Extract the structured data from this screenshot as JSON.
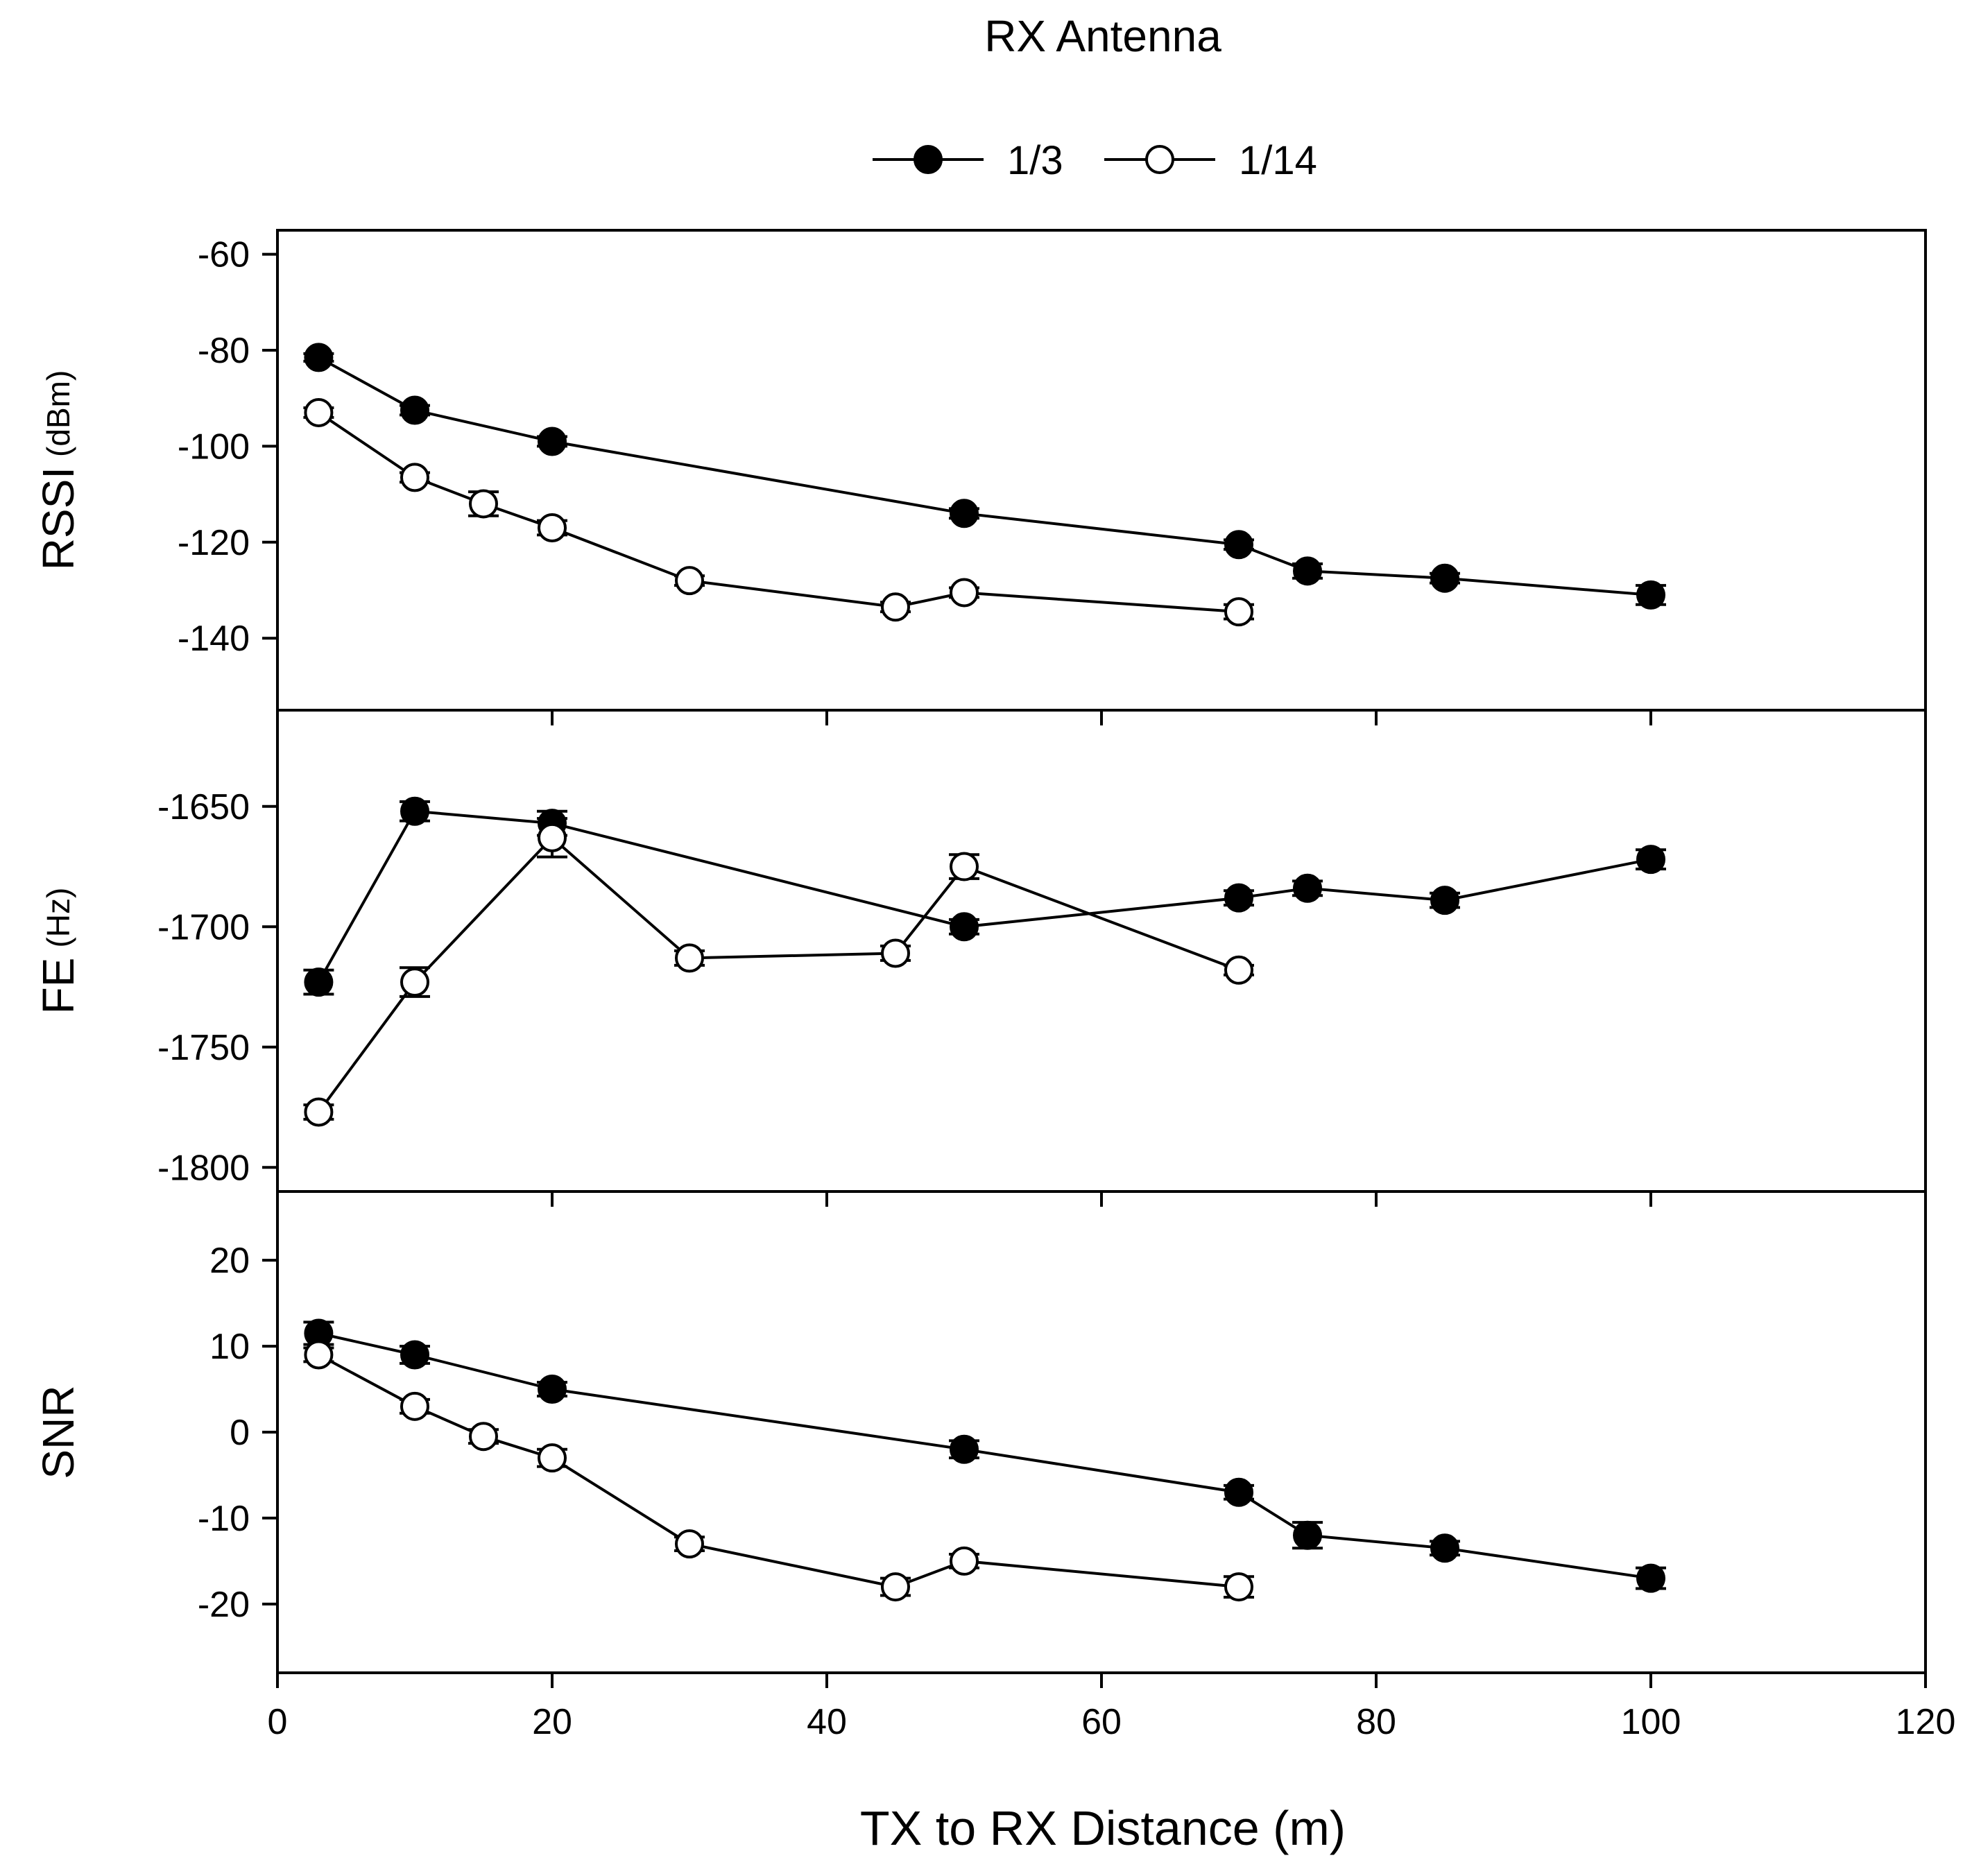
{
  "chart_data": {
    "type": "line",
    "title": "RX Antenna",
    "legend": {
      "placement": "top-center",
      "entries": [
        {
          "name": "1/3",
          "marker": "filled-circle",
          "color": "#000000"
        },
        {
          "name": "1/14",
          "marker": "open-circle",
          "color": "#000000"
        }
      ]
    },
    "xlabel": "TX to RX Distance (m)",
    "xlim": [
      0,
      120
    ],
    "xticks": [
      0,
      20,
      40,
      60,
      80,
      100,
      120
    ],
    "xtick_labels": [
      "0",
      "20",
      "40",
      "60",
      "80",
      "100",
      "120"
    ],
    "panels": [
      {
        "id": "rssi",
        "ylabel": "RSSI",
        "yunit": "(dBm)",
        "ylim": [
          -155,
          -55
        ],
        "yticks": [
          -60,
          -80,
          -100,
          -120,
          -140
        ],
        "ytick_labels": [
          "-60",
          "-80",
          "-100",
          "-120",
          "-140"
        ],
        "series": [
          {
            "name": "1/3",
            "x": [
              3,
              10,
              20,
              50,
              70,
              75,
              85,
              100
            ],
            "y": [
              -81.5,
              -92.5,
              -99,
              -114,
              -120.5,
              -126,
              -127.5,
              -131
            ],
            "err": [
              0.8,
              1,
              1,
              1,
              1,
              1.5,
              1,
              2
            ]
          },
          {
            "name": "1/14",
            "x": [
              3,
              10,
              15,
              20,
              30,
              45,
              50,
              70
            ],
            "y": [
              -93,
              -106.5,
              -112,
              -117,
              -128,
              -133.5,
              -130.5,
              -134.5
            ],
            "err": [
              1,
              1,
              2.5,
              1.5,
              1,
              1,
              1,
              1.5
            ]
          }
        ]
      },
      {
        "id": "fe",
        "ylabel": "FE",
        "yunit": "(Hz)",
        "ylim": [
          -1810,
          -1610
        ],
        "yticks": [
          -1650,
          -1700,
          -1750,
          -1800
        ],
        "ytick_labels": [
          "-1650",
          "-1700",
          "-1750",
          "-1800"
        ],
        "series": [
          {
            "name": "1/3",
            "x": [
              3,
              10,
              20,
              50,
              70,
              75,
              85,
              100
            ],
            "y": [
              -1723,
              -1652,
              -1657,
              -1700,
              -1688,
              -1684,
              -1689,
              -1672
            ],
            "err": [
              5,
              4,
              5,
              3,
              3,
              3,
              3,
              4
            ]
          },
          {
            "name": "1/14",
            "x": [
              3,
              10,
              20,
              30,
              45,
              50,
              70
            ],
            "y": [
              -1777,
              -1723,
              -1663,
              -1713,
              -1711,
              -1675,
              -1718
            ],
            "err": [
              3,
              6,
              8,
              3,
              3,
              5,
              2
            ]
          }
        ]
      },
      {
        "id": "snr",
        "ylabel": "SNR",
        "yunit": "",
        "ylim": [
          -28,
          28
        ],
        "yticks": [
          20,
          10,
          0,
          -10,
          -20
        ],
        "ytick_labels": [
          "20",
          "10",
          "0",
          "-10",
          "-20"
        ],
        "series": [
          {
            "name": "1/3",
            "x": [
              3,
              10,
              20,
              50,
              70,
              75,
              85,
              100
            ],
            "y": [
              11.5,
              9,
              5,
              -2,
              -7,
              -12,
              -13.5,
              -17
            ],
            "err": [
              1.3,
              1,
              0.8,
              1,
              0.8,
              1.5,
              0.8,
              1.2
            ]
          },
          {
            "name": "1/14",
            "x": [
              3,
              10,
              15,
              20,
              30,
              45,
              50,
              70
            ],
            "y": [
              9,
              3,
              -0.5,
              -3,
              -13,
              -18,
              -15,
              -18
            ],
            "err": [
              0.8,
              0.8,
              0.8,
              1,
              0.8,
              1,
              0.8,
              1.2
            ]
          }
        ]
      }
    ]
  }
}
